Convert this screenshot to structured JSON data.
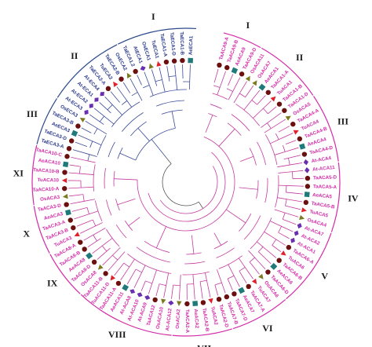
{
  "colors": {
    "eca": "#2b3a8c",
    "aca": "#d42aa8",
    "arc_eca": "#2b4a8c",
    "arc_aca": "#d42aa8",
    "branch_eca": "#3a4a9a",
    "branch_aca": "#c43aa0",
    "root": "#555555",
    "marker_circle": "#6b0f0f",
    "marker_triangle_red": "#e0212c",
    "marker_triangle_olive": "#7a7a1e",
    "marker_square": "#1f7a7a",
    "marker_diamond": "#6a2fb0"
  },
  "leaves": [
    {
      "label": "AeECA1",
      "group": "eca",
      "marker": "square"
    },
    {
      "label": "TaECA1-B",
      "group": "eca",
      "marker": "circle"
    },
    {
      "label": "TaECA1-D",
      "group": "eca",
      "marker": "circle"
    },
    {
      "label": "TaECA1-A",
      "group": "eca",
      "marker": "circle"
    },
    {
      "label": "TuECA1",
      "group": "eca",
      "marker": "triangle_red"
    },
    {
      "label": "OsECA1",
      "group": "eca",
      "marker": "triangle_olive"
    },
    {
      "label": "AtECA1",
      "group": "eca",
      "marker": "diamond"
    },
    {
      "label": "TaECA1.2",
      "group": "eca",
      "marker": "circle"
    },
    {
      "label": "OsECA2",
      "group": "eca",
      "marker": "triangle_olive"
    },
    {
      "label": "TaECA2-B",
      "group": "eca",
      "marker": "circle"
    },
    {
      "label": "TuECA2",
      "group": "eca",
      "marker": "triangle_red"
    },
    {
      "label": "TaECA2-A",
      "group": "eca",
      "marker": "circle"
    },
    {
      "label": "At-ECA4",
      "group": "eca",
      "marker": "diamond"
    },
    {
      "label": "At-ECA1",
      "group": "eca",
      "marker": "diamond"
    },
    {
      "label": "At-ECA2",
      "group": "eca",
      "marker": "diamond"
    },
    {
      "label": "At-ECA3",
      "group": "eca",
      "marker": "diamond"
    },
    {
      "label": "OsECA3",
      "group": "eca",
      "marker": "triangle_olive"
    },
    {
      "label": "TaECA3-B",
      "group": "eca",
      "marker": "circle"
    },
    {
      "label": "AeECA3",
      "group": "eca",
      "marker": "square"
    },
    {
      "label": "TaECA3-D",
      "group": "eca",
      "marker": "circle"
    },
    {
      "label": "TaECA3-A",
      "group": "eca",
      "marker": "circle"
    },
    {
      "label": "TaACA10-C",
      "group": "aca",
      "marker": "circle"
    },
    {
      "label": "AeACA10",
      "group": "aca",
      "marker": "square"
    },
    {
      "label": "TaACA10-B",
      "group": "aca",
      "marker": "circle"
    },
    {
      "label": "TuACA10",
      "group": "aca",
      "marker": "triangle_red"
    },
    {
      "label": "TaACA10-A",
      "group": "aca",
      "marker": "circle"
    },
    {
      "label": "OsACA3",
      "group": "aca",
      "marker": "triangle_olive"
    },
    {
      "label": "TaACA3-D",
      "group": "aca",
      "marker": "circle"
    },
    {
      "label": "AeACA3",
      "group": "aca",
      "marker": "square"
    },
    {
      "label": "TaACA3-A",
      "group": "aca",
      "marker": "circle"
    },
    {
      "label": "TaACA3-B",
      "group": "aca",
      "marker": "circle"
    },
    {
      "label": "TuACA3",
      "group": "aca",
      "marker": "triangle_red"
    },
    {
      "label": "TaACA8-A",
      "group": "aca",
      "marker": "circle"
    },
    {
      "label": "TaACA8-B",
      "group": "aca",
      "marker": "circle"
    },
    {
      "label": "AeACA8",
      "group": "aca",
      "marker": "square"
    },
    {
      "label": "TaACA8-D",
      "group": "aca",
      "marker": "circle"
    },
    {
      "label": "OsACA8",
      "group": "aca",
      "marker": "triangle_olive"
    },
    {
      "label": "TaACA11-B",
      "group": "aca",
      "marker": "circle"
    },
    {
      "label": "TuACA11-D",
      "group": "aca",
      "marker": "triangle_red"
    },
    {
      "label": "TaACA11-A",
      "group": "aca",
      "marker": "circle"
    },
    {
      "label": "AeACA11",
      "group": "aca",
      "marker": "square"
    },
    {
      "label": "At-ACA8",
      "group": "aca",
      "marker": "diamond"
    },
    {
      "label": "At-ACA10",
      "group": "aca",
      "marker": "diamond"
    },
    {
      "label": "At-ACA9",
      "group": "aca",
      "marker": "diamond"
    },
    {
      "label": "TaACA12",
      "group": "aca",
      "marker": "circle"
    },
    {
      "label": "OsACA10",
      "group": "aca",
      "marker": "triangle_olive"
    },
    {
      "label": "At-ACA12",
      "group": "aca",
      "marker": "diamond"
    },
    {
      "label": "OsACA2",
      "group": "aca",
      "marker": "triangle_olive"
    },
    {
      "label": "TaACA2-A",
      "group": "aca",
      "marker": "circle"
    },
    {
      "label": "AeACA2",
      "group": "aca",
      "marker": "square"
    },
    {
      "label": "TaACA2-B",
      "group": "aca",
      "marker": "circle"
    },
    {
      "label": "TuACA2",
      "group": "aca",
      "marker": "triangle_red"
    },
    {
      "label": "TaACA2-D",
      "group": "aca",
      "marker": "circle"
    },
    {
      "label": "TaACA7-B",
      "group": "aca",
      "marker": "circle"
    },
    {
      "label": "TaACA7-D",
      "group": "aca",
      "marker": "circle"
    },
    {
      "label": "AeACA7",
      "group": "aca",
      "marker": "square"
    },
    {
      "label": "TaACA7-A",
      "group": "aca",
      "marker": "circle"
    },
    {
      "label": "TuACA7",
      "group": "aca",
      "marker": "triangle_red"
    },
    {
      "label": "OsACA6",
      "group": "aca",
      "marker": "triangle_olive"
    },
    {
      "label": "TaACA6-D",
      "group": "aca",
      "marker": "circle"
    },
    {
      "label": "AeACA6",
      "group": "aca",
      "marker": "square"
    },
    {
      "label": "TaACA6-B",
      "group": "aca",
      "marker": "circle"
    },
    {
      "label": "TuACA6",
      "group": "aca",
      "marker": "triangle_red"
    },
    {
      "label": "TaACA6-A",
      "group": "aca",
      "marker": "circle"
    },
    {
      "label": "At-ACA1",
      "group": "aca",
      "marker": "diamond"
    },
    {
      "label": "At-ACA2",
      "group": "aca",
      "marker": "diamond"
    },
    {
      "label": "At-ACA7",
      "group": "aca",
      "marker": "diamond"
    },
    {
      "label": "OsACA4",
      "group": "aca",
      "marker": "triangle_olive"
    },
    {
      "label": "TuACA5",
      "group": "aca",
      "marker": "triangle_red"
    },
    {
      "label": "TaACA5-B",
      "group": "aca",
      "marker": "circle"
    },
    {
      "label": "AeACA5",
      "group": "aca",
      "marker": "square"
    },
    {
      "label": "TaACA5-A",
      "group": "aca",
      "marker": "circle"
    },
    {
      "label": "TaACA5-D",
      "group": "aca",
      "marker": "circle"
    },
    {
      "label": "At-ACA11",
      "group": "aca",
      "marker": "diamond"
    },
    {
      "label": "At-ACA4",
      "group": "aca",
      "marker": "diamond"
    },
    {
      "label": "TaACA4-D",
      "group": "aca",
      "marker": "circle"
    },
    {
      "label": "AeACA4",
      "group": "aca",
      "marker": "square"
    },
    {
      "label": "TaACA4-B",
      "group": "aca",
      "marker": "circle"
    },
    {
      "label": "TuACA4",
      "group": "aca",
      "marker": "triangle_red"
    },
    {
      "label": "TaACA4-A",
      "group": "aca",
      "marker": "circle"
    },
    {
      "label": "OsACA5",
      "group": "aca",
      "marker": "triangle_olive"
    },
    {
      "label": "TaACA1-D",
      "group": "aca",
      "marker": "circle"
    },
    {
      "label": "TaACA1-B",
      "group": "aca",
      "marker": "circle"
    },
    {
      "label": "TuACA1",
      "group": "aca",
      "marker": "triangle_red"
    },
    {
      "label": "TaACA1-A",
      "group": "aca",
      "marker": "circle"
    },
    {
      "label": "AeACA1",
      "group": "aca",
      "marker": "square"
    },
    {
      "label": "OsACA7",
      "group": "aca",
      "marker": "triangle_olive"
    },
    {
      "label": "OsACA11",
      "group": "aca",
      "marker": "triangle_olive"
    },
    {
      "label": "TaACA9-D",
      "group": "aca",
      "marker": "circle"
    },
    {
      "label": "AeACA9",
      "group": "aca",
      "marker": "square"
    },
    {
      "label": "TaACA9-B",
      "group": "aca",
      "marker": "circle"
    },
    {
      "label": "TaACA9-A",
      "group": "aca",
      "marker": "circle"
    }
  ],
  "clades": [
    {
      "label": "I",
      "group": "eca",
      "from": 0,
      "to": 7
    },
    {
      "label": "II",
      "group": "eca",
      "from": 8,
      "to": 15
    },
    {
      "label": "III",
      "group": "eca",
      "from": 16,
      "to": 20
    },
    {
      "label": "XI",
      "group": "aca",
      "from": 21,
      "to": 26
    },
    {
      "label": "X",
      "group": "aca",
      "from": 27,
      "to": 31
    },
    {
      "label": "IX",
      "group": "aca",
      "from": 32,
      "to": 36
    },
    {
      "label": "VIII",
      "group": "aca",
      "from": 37,
      "to": 46
    },
    {
      "label": "VII",
      "group": "aca",
      "from": 47,
      "to": 52
    },
    {
      "label": "VI",
      "group": "aca",
      "from": 53,
      "to": 58
    },
    {
      "label": "V",
      "group": "aca",
      "from": 59,
      "to": 66
    },
    {
      "label": "IV",
      "group": "aca",
      "from": 67,
      "to": 73
    },
    {
      "label": "III",
      "group": "aca",
      "from": 74,
      "to": 80
    },
    {
      "label": "II",
      "group": "aca",
      "from": 81,
      "to": 87
    },
    {
      "label": "I",
      "group": "aca",
      "from": 88,
      "to": 91
    }
  ]
}
